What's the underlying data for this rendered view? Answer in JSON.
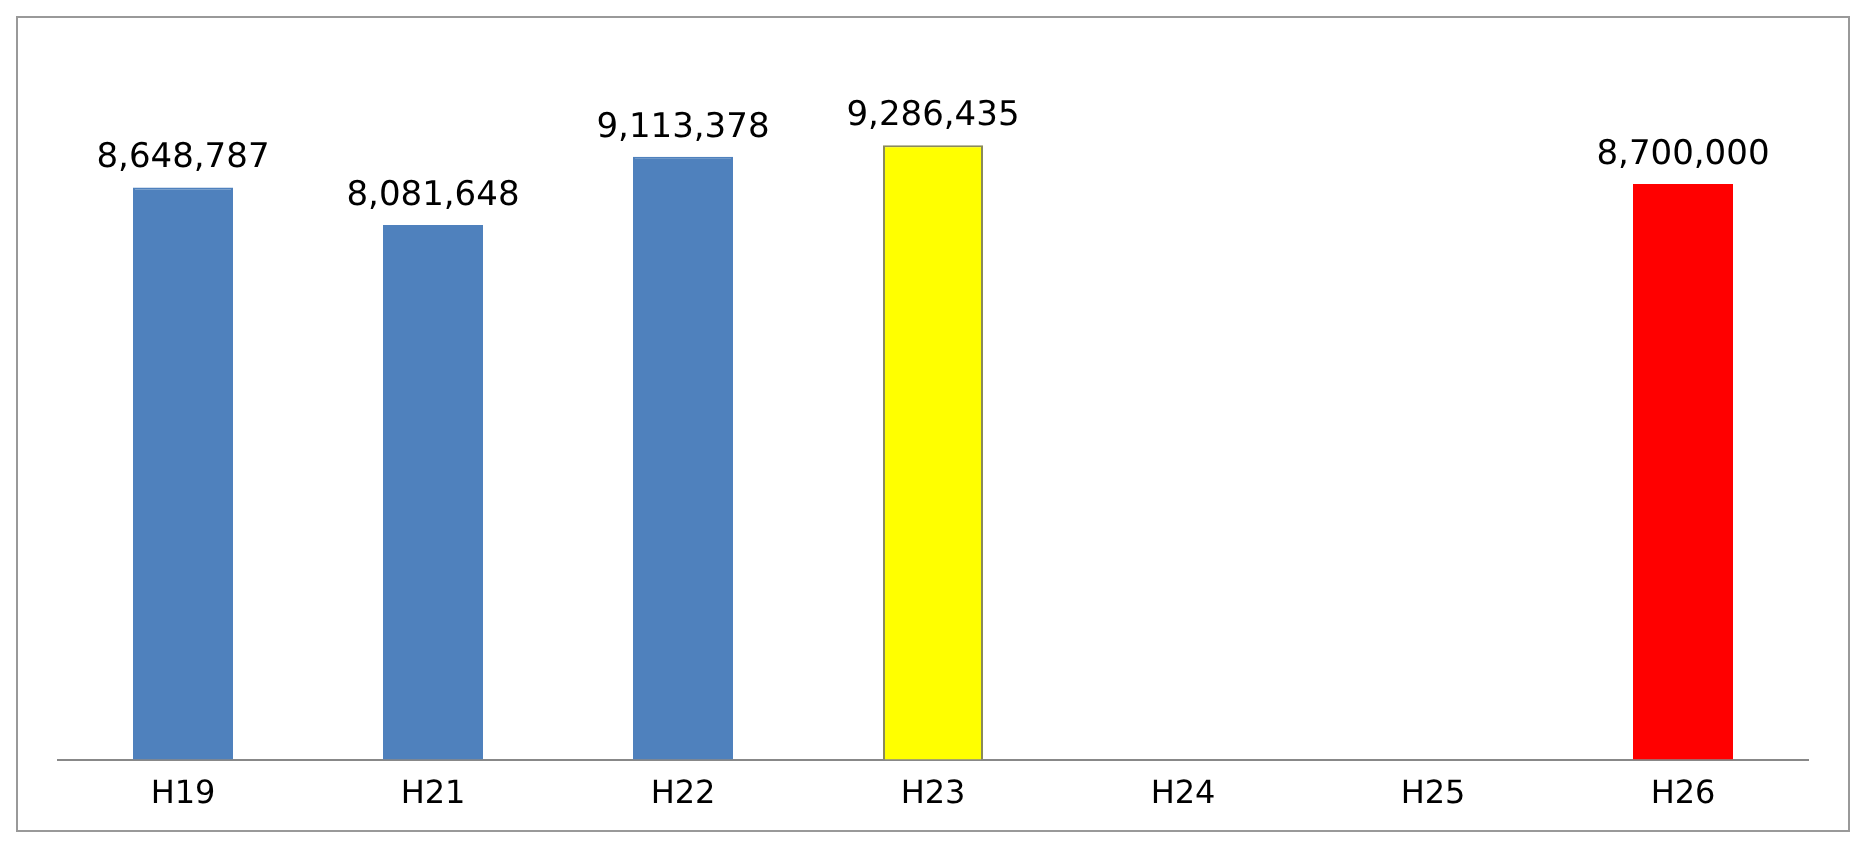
{
  "chart_data": {
    "type": "bar",
    "categories": [
      "H19",
      "H21",
      "H22",
      "H23",
      "H24",
      "H25",
      "H26"
    ],
    "values": [
      8648787,
      8081648,
      9113378,
      9286435,
      null,
      null,
      8700000
    ],
    "colors": [
      "#4f81bd",
      "#4f81bd",
      "#4f81bd",
      "#ffff00",
      "#4f81bd",
      "#4f81bd",
      "#ff0000"
    ],
    "value_labels": [
      "8,648,787",
      "8,081,648",
      "9,113,378",
      "9,286,435",
      null,
      null,
      "8,700,000"
    ],
    "tick_labels": "x",
    "grid": false,
    "legend": false
  }
}
